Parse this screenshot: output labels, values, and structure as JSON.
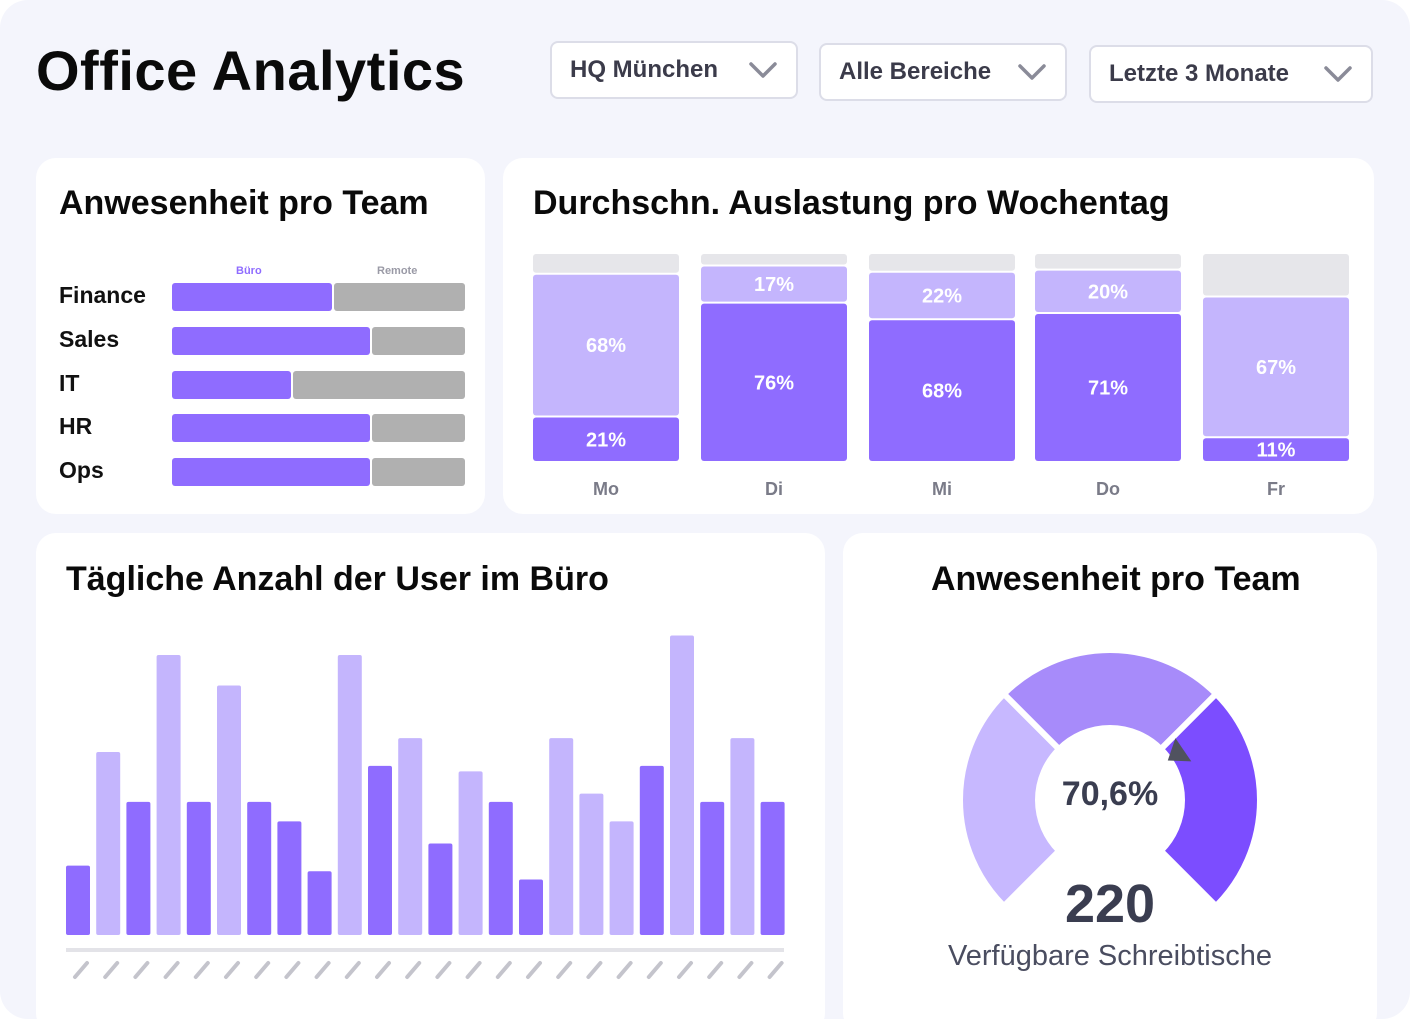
{
  "header": {
    "title": "Office Analytics",
    "filters": [
      {
        "label": "HQ München"
      },
      {
        "label": "Alle Bereiche"
      },
      {
        "label": "Letzte 3 Monate"
      }
    ]
  },
  "colors": {
    "buero": "#8f6cff",
    "remote": "#b0b0b0",
    "light": "#c4b5fd",
    "dark": "#8f6cff",
    "empty": "#e6e6ea",
    "gauge_light": "#c7b8ff",
    "gauge_mid": "#a78bfa",
    "gauge_dark": "#7c4dff"
  },
  "chart_data": [
    {
      "type": "bar",
      "orientation": "horizontal",
      "stacked": true,
      "title": "Anwesenheit pro Team",
      "categories": [
        "Finance",
        "Sales",
        "IT",
        "HR",
        "Ops"
      ],
      "legend": [
        "Büro",
        "Remote"
      ],
      "series": [
        {
          "name": "Büro",
          "values": [
            55,
            68,
            41,
            68,
            68
          ]
        },
        {
          "name": "Remote",
          "values": [
            45,
            32,
            59,
            32,
            32
          ]
        }
      ],
      "xlim": [
        0,
        100
      ]
    },
    {
      "type": "bar",
      "stacked": true,
      "title": "Durchschn. Auslastung pro Wochentag",
      "categories": [
        "Mo",
        "Di",
        "Mi",
        "Do",
        "Fr"
      ],
      "series": [
        {
          "name": "dark",
          "values": [
            21,
            76,
            68,
            71,
            11
          ],
          "labels": [
            "21%",
            "76%",
            "68%",
            "71%",
            "11%"
          ]
        },
        {
          "name": "light",
          "values": [
            68,
            17,
            22,
            20,
            67
          ],
          "labels": [
            "68%",
            "17%",
            "22%",
            "20%",
            "67%"
          ]
        }
      ],
      "ylim": [
        0,
        100
      ]
    },
    {
      "type": "bar",
      "title": "Tägliche Anzahl der User im Büro",
      "values": [
        25,
        66,
        48,
        101,
        48,
        90,
        48,
        41,
        23,
        101,
        61,
        71,
        33,
        59,
        48,
        20,
        71,
        51,
        41,
        61,
        108,
        48,
        71,
        48
      ],
      "shades": [
        "dark",
        "light",
        "dark",
        "light",
        "dark",
        "light",
        "dark",
        "dark",
        "dark",
        "light",
        "dark",
        "light",
        "dark",
        "light",
        "dark",
        "dark",
        "light",
        "light",
        "light",
        "dark",
        "light",
        "dark",
        "light",
        "dark"
      ],
      "ylim": [
        0,
        110
      ]
    },
    {
      "type": "gauge",
      "title": "Anwesenheit pro Team",
      "value": 70.6,
      "value_label": "70,6%",
      "count": "220",
      "count_label": "Verfügbare Schreibtische"
    }
  ]
}
